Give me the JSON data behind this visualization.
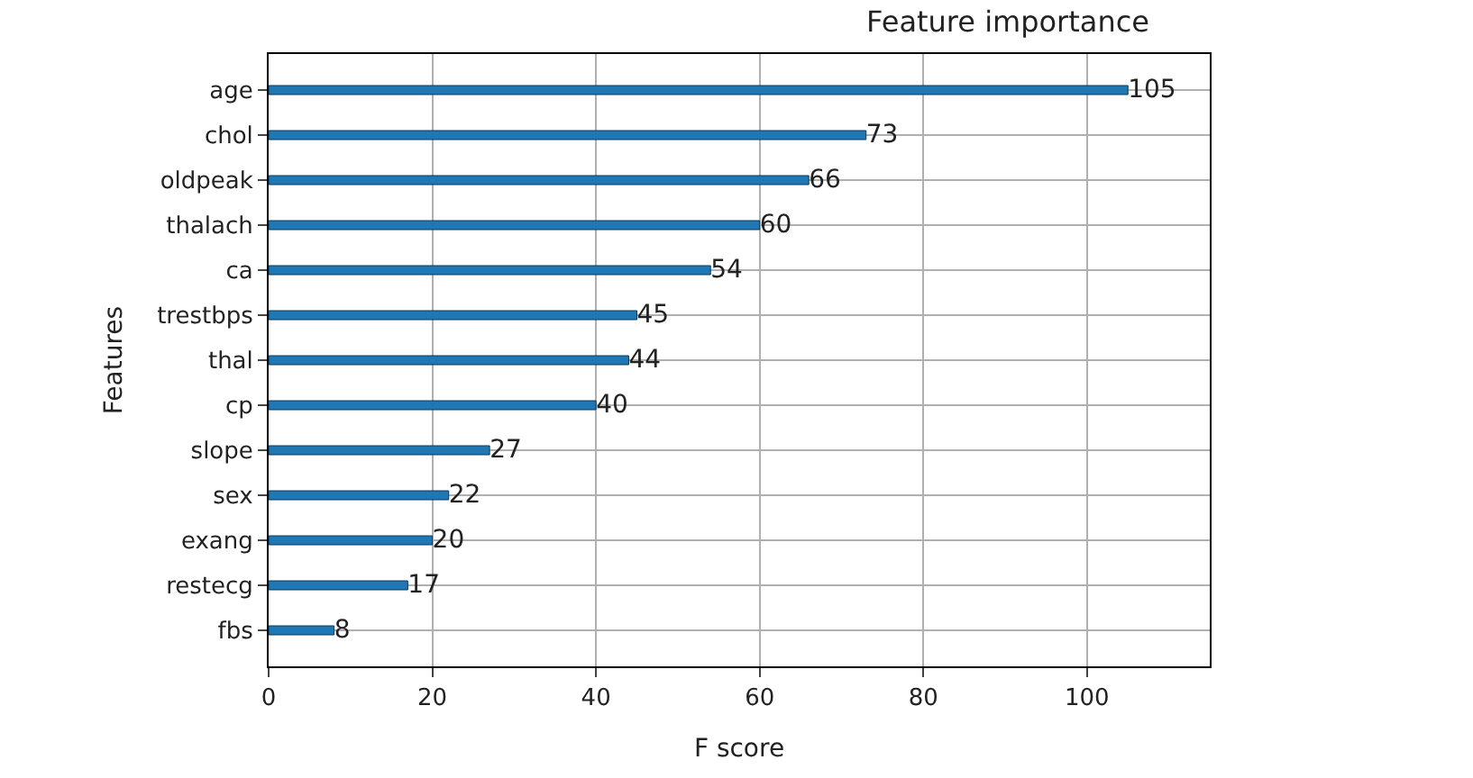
{
  "chart_data": {
    "type": "bar",
    "orientation": "horizontal",
    "title": "Feature importance",
    "xlabel": "F score",
    "ylabel": "Features",
    "categories": [
      "age",
      "chol",
      "oldpeak",
      "thalach",
      "ca",
      "trestbps",
      "thal",
      "cp",
      "slope",
      "sex",
      "exang",
      "restecg",
      "fbs"
    ],
    "values": [
      105,
      73,
      66,
      60,
      54,
      45,
      44,
      40,
      27,
      22,
      20,
      17,
      8
    ],
    "color": "#1f77b4",
    "xlim": [
      0,
      115
    ],
    "xticks": [
      0,
      20,
      40,
      60,
      80,
      100
    ],
    "grid": true,
    "legend": false,
    "data_labels": true
  }
}
